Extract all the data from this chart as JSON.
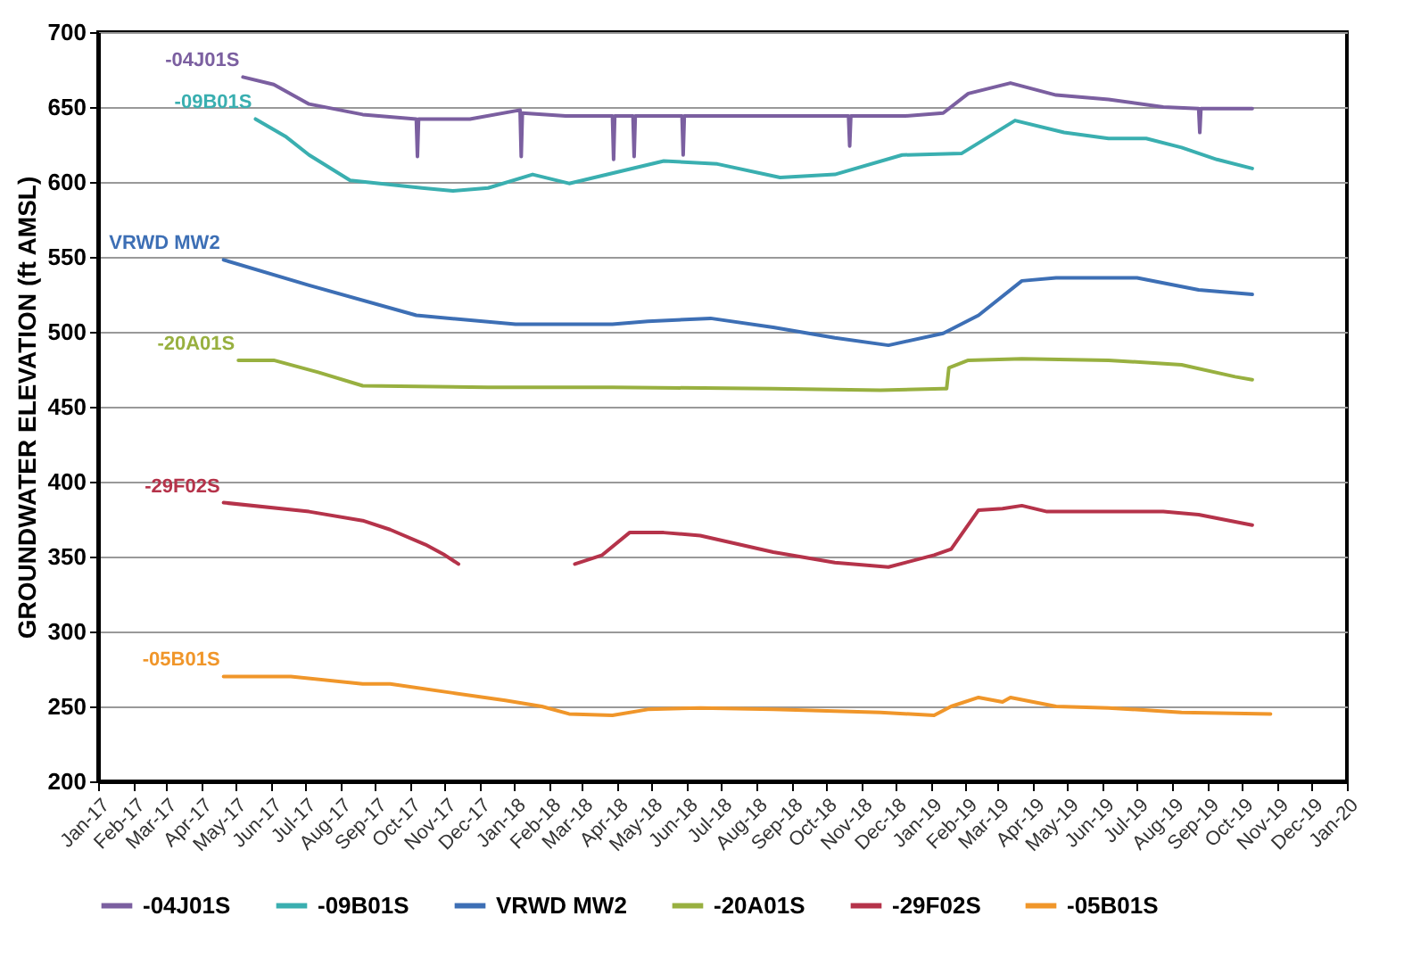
{
  "chart_data": {
    "type": "line",
    "ylabel": "GROUNDWATER ELEVATION (ft AMSL)",
    "xlim": [
      "2017-01-01",
      "2020-01-01"
    ],
    "ylim": [
      200,
      700
    ],
    "yticks": [
      200,
      250,
      300,
      350,
      400,
      450,
      500,
      550,
      600,
      650,
      700
    ],
    "xticks": [
      {
        "value": "2017-01-01",
        "label": "Jan-17"
      },
      {
        "value": "2017-02-01",
        "label": "Feb-17"
      },
      {
        "value": "2017-03-01",
        "label": "Mar-17"
      },
      {
        "value": "2017-04-01",
        "label": "Apr-17"
      },
      {
        "value": "2017-05-01",
        "label": "May-17"
      },
      {
        "value": "2017-06-01",
        "label": "Jun-17"
      },
      {
        "value": "2017-07-01",
        "label": "Jul-17"
      },
      {
        "value": "2017-08-01",
        "label": "Aug-17"
      },
      {
        "value": "2017-09-01",
        "label": "Sep-17"
      },
      {
        "value": "2017-10-01",
        "label": "Oct-17"
      },
      {
        "value": "2017-11-01",
        "label": "Nov-17"
      },
      {
        "value": "2017-12-01",
        "label": "Dec-17"
      },
      {
        "value": "2018-01-01",
        "label": "Jan-18"
      },
      {
        "value": "2018-02-01",
        "label": "Feb-18"
      },
      {
        "value": "2018-03-01",
        "label": "Mar-18"
      },
      {
        "value": "2018-04-01",
        "label": "Apr-18"
      },
      {
        "value": "2018-05-01",
        "label": "May-18"
      },
      {
        "value": "2018-06-01",
        "label": "Jun-18"
      },
      {
        "value": "2018-07-01",
        "label": "Jul-18"
      },
      {
        "value": "2018-08-01",
        "label": "Aug-18"
      },
      {
        "value": "2018-09-01",
        "label": "Sep-18"
      },
      {
        "value": "2018-10-01",
        "label": "Oct-18"
      },
      {
        "value": "2018-11-01",
        "label": "Nov-18"
      },
      {
        "value": "2018-12-01",
        "label": "Dec-18"
      },
      {
        "value": "2019-01-01",
        "label": "Jan-19"
      },
      {
        "value": "2019-02-01",
        "label": "Feb-19"
      },
      {
        "value": "2019-03-01",
        "label": "Mar-19"
      },
      {
        "value": "2019-04-01",
        "label": "Apr-19"
      },
      {
        "value": "2019-05-01",
        "label": "May-19"
      },
      {
        "value": "2019-06-01",
        "label": "Jun-19"
      },
      {
        "value": "2019-07-01",
        "label": "Jul-19"
      },
      {
        "value": "2019-08-01",
        "label": "Aug-19"
      },
      {
        "value": "2019-09-01",
        "label": "Sep-19"
      },
      {
        "value": "2019-10-01",
        "label": "Oct-19"
      },
      {
        "value": "2019-11-01",
        "label": "Nov-19"
      },
      {
        "value": "2019-12-01",
        "label": "Dec-19"
      },
      {
        "value": "2020-01-01",
        "label": "Jan-20"
      }
    ],
    "grid": "y",
    "legend": "bottom",
    "marker": "none",
    "line_style": "solid",
    "series": [
      {
        "name": "-04J01S",
        "color": "#7b5fa0",
        "x": [
          "2017-05-08",
          "2017-06-04",
          "2017-07-05",
          "2017-08-21",
          "2017-10-07",
          "2017-10-08",
          "2017-10-09",
          "2017-11-23",
          "2018-01-06",
          "2018-01-07",
          "2018-01-08",
          "2018-02-15",
          "2018-03-28",
          "2018-03-29",
          "2018-03-30",
          "2018-04-15",
          "2018-04-16",
          "2018-04-17",
          "2018-05-28",
          "2018-05-29",
          "2018-05-30",
          "2018-08-01",
          "2018-10-21",
          "2018-10-22",
          "2018-10-23",
          "2018-12-10",
          "2019-01-12",
          "2019-02-03",
          "2019-03-12",
          "2019-04-21",
          "2019-06-06",
          "2019-07-24",
          "2019-08-24",
          "2019-08-25",
          "2019-08-26",
          "2019-10-10"
        ],
        "values": [
          670,
          665,
          652,
          645,
          642,
          617,
          642,
          642,
          648,
          617,
          646,
          644,
          644,
          615,
          644,
          644,
          617,
          644,
          644,
          618,
          644,
          644,
          644,
          624,
          644,
          644,
          646,
          659,
          666,
          658,
          655,
          650,
          649,
          633,
          649,
          649
        ]
      },
      {
        "name": "-09B01S",
        "color": "#3aafb0",
        "x": [
          "2017-05-19",
          "2017-06-15",
          "2017-07-05",
          "2017-08-10",
          "2017-10-12",
          "2017-11-08",
          "2017-12-09",
          "2018-01-17",
          "2018-02-18",
          "2018-05-12",
          "2018-06-28",
          "2018-08-22",
          "2018-10-09",
          "2018-12-07",
          "2019-01-28",
          "2019-03-16",
          "2019-04-28",
          "2019-06-06",
          "2019-07-09",
          "2019-08-09",
          "2019-09-09",
          "2019-10-10"
        ],
        "values": [
          642,
          630,
          618,
          601,
          596,
          594,
          596,
          605,
          599,
          614,
          612,
          603,
          605,
          618,
          619,
          641,
          633,
          629,
          629,
          623,
          615,
          609
        ]
      },
      {
        "name": "VRWD MW2",
        "color": "#3d6fb5",
        "x": [
          "2017-04-21",
          "2017-07-05",
          "2017-10-07",
          "2018-01-02",
          "2018-03-28",
          "2018-04-28",
          "2018-06-22",
          "2018-08-16",
          "2018-10-09",
          "2018-11-25",
          "2019-01-12",
          "2019-02-12",
          "2019-03-22",
          "2019-04-21",
          "2019-07-01",
          "2019-08-24",
          "2019-10-10"
        ],
        "values": [
          548,
          531,
          511,
          505,
          505,
          507,
          509,
          503,
          496,
          491,
          499,
          511,
          534,
          536,
          536,
          528,
          525
        ]
      },
      {
        "name": "-20A01S",
        "color": "#98b040",
        "x": [
          "2017-05-04",
          "2017-06-04",
          "2017-07-13",
          "2017-08-21",
          "2017-12-09",
          "2018-03-28",
          "2018-08-16",
          "2018-11-18",
          "2019-01-12",
          "2019-01-15",
          "2019-01-17",
          "2019-02-03",
          "2019-03-22",
          "2019-06-06",
          "2019-08-09",
          "2019-09-25",
          "2019-10-10"
        ],
        "values": [
          481,
          481,
          473,
          464,
          463,
          463,
          462,
          461,
          462,
          462,
          476,
          481,
          482,
          481,
          478,
          470,
          468
        ]
      },
      {
        "name": "-29F02S",
        "color": "#b5334a",
        "x": [
          "2017-04-21",
          "2017-07-05",
          "2017-08-21",
          "2017-09-14",
          "2017-10-15",
          "2017-11-01",
          "2017-11-13",
          "2018-01-01",
          "2018-02-23",
          "2018-03-19",
          "2018-04-12",
          "2018-05-12",
          "2018-06-13",
          "2018-08-16",
          "2018-10-09",
          "2018-11-25",
          "2019-01-04",
          "2019-01-19",
          "2019-02-12",
          "2019-03-05",
          "2019-03-22",
          "2019-04-13",
          "2019-06-06",
          "2019-07-24",
          "2019-08-24",
          "2019-10-10"
        ],
        "values": [
          386,
          380,
          374,
          368,
          358,
          351,
          345,
          null,
          345,
          351,
          366,
          366,
          364,
          353,
          346,
          343,
          351,
          355,
          381,
          382,
          384,
          380,
          380,
          380,
          378,
          371
        ]
      },
      {
        "name": "-05B01S",
        "color": "#f0962a",
        "x": [
          "2017-04-21",
          "2017-06-19",
          "2017-08-21",
          "2017-09-14",
          "2017-11-08",
          "2017-12-24",
          "2018-01-25",
          "2018-02-18",
          "2018-03-28",
          "2018-04-28",
          "2018-06-13",
          "2018-08-16",
          "2018-11-18",
          "2019-01-04",
          "2019-01-19",
          "2019-02-12",
          "2019-03-05",
          "2019-03-12",
          "2019-04-21",
          "2019-06-06",
          "2019-08-09",
          "2019-10-26"
        ],
        "values": [
          270,
          270,
          265,
          265,
          259,
          254,
          250,
          245,
          244,
          248,
          249,
          248,
          246,
          244,
          250,
          256,
          253,
          256,
          250,
          249,
          246,
          245
        ]
      }
    ]
  }
}
